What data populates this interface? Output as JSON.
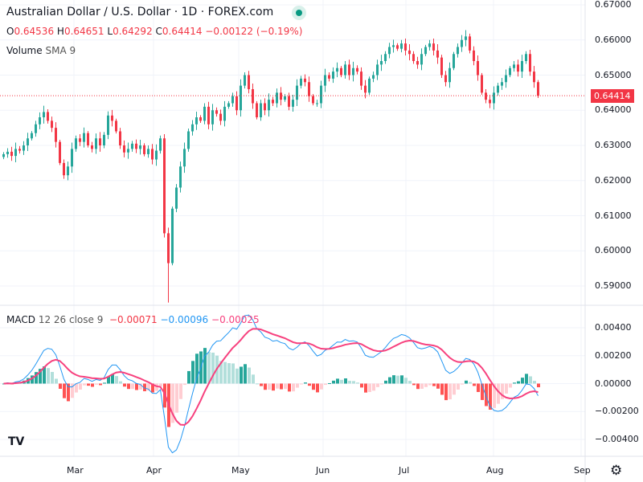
{
  "header": {
    "title": "Australian Dollar / U.S. Dollar · 1D · FOREX.com",
    "ohlc": {
      "o_label": "O",
      "o": "0.64536",
      "h_label": "H",
      "h": "0.64651",
      "l_label": "L",
      "l": "0.64292",
      "c_label": "C",
      "c": "0.64414",
      "change": "−0.00122 (−0.19%)"
    },
    "volume_label": "Volume",
    "volume_sma": "SMA 9"
  },
  "macd_legend": {
    "name": "MACD",
    "params": "12 26 close 9",
    "hist": "−0.00071",
    "macd": "−0.00096",
    "signal": "−0.00025"
  },
  "price_label": "0.64414",
  "colors": {
    "up": "#26a69a",
    "down": "#f23645",
    "macd": "#2196f3",
    "signal": "#f7417e"
  },
  "chart_data": {
    "type": "candlestick",
    "price_axis": {
      "ticks": [
        "0.67000",
        "0.66000",
        "0.65000",
        "0.64000",
        "0.63000",
        "0.62000",
        "0.61000",
        "0.60000",
        "0.59000"
      ],
      "range": [
        0.59,
        0.67
      ]
    },
    "macd_axis": {
      "ticks": [
        "0.00400",
        "0.00200",
        "0.00000",
        "−0.00200",
        "−0.00400"
      ],
      "range": [
        -0.004,
        0.004
      ]
    },
    "x_ticks": [
      "Mar",
      "Apr",
      "May",
      "Jun",
      "Jul",
      "Aug",
      "Sep"
    ],
    "last_price": 0.64414,
    "closes": [
      0.6275,
      0.6282,
      0.627,
      0.629,
      0.6285,
      0.63,
      0.632,
      0.6335,
      0.636,
      0.638,
      0.6395,
      0.637,
      0.635,
      0.631,
      0.625,
      0.6215,
      0.624,
      0.629,
      0.632,
      0.631,
      0.6335,
      0.63,
      0.629,
      0.632,
      0.63,
      0.633,
      0.6385,
      0.637,
      0.634,
      0.63,
      0.628,
      0.629,
      0.6305,
      0.629,
      0.63,
      0.6275,
      0.629,
      0.626,
      0.6285,
      0.632,
      0.605,
      0.5965,
      0.612,
      0.618,
      0.624,
      0.629,
      0.634,
      0.636,
      0.638,
      0.637,
      0.641,
      0.636,
      0.64,
      0.639,
      0.637,
      0.641,
      0.642,
      0.644,
      0.64,
      0.647,
      0.65,
      0.646,
      0.642,
      0.638,
      0.642,
      0.64,
      0.643,
      0.642,
      0.645,
      0.643,
      0.644,
      0.641,
      0.643,
      0.647,
      0.649,
      0.648,
      0.644,
      0.642,
      0.642,
      0.647,
      0.65,
      0.649,
      0.651,
      0.652,
      0.65,
      0.653,
      0.65,
      0.652,
      0.651,
      0.647,
      0.645,
      0.649,
      0.65,
      0.653,
      0.654,
      0.656,
      0.658,
      0.6585,
      0.6575,
      0.659,
      0.657,
      0.656,
      0.654,
      0.653,
      0.656,
      0.658,
      0.659,
      0.657,
      0.655,
      0.65,
      0.648,
      0.652,
      0.656,
      0.658,
      0.66,
      0.661,
      0.657,
      0.654,
      0.65,
      0.645,
      0.643,
      0.642,
      0.645,
      0.647,
      0.648,
      0.65,
      0.652,
      0.653,
      0.651,
      0.654,
      0.656,
      0.651,
      0.648,
      0.6441
    ]
  }
}
